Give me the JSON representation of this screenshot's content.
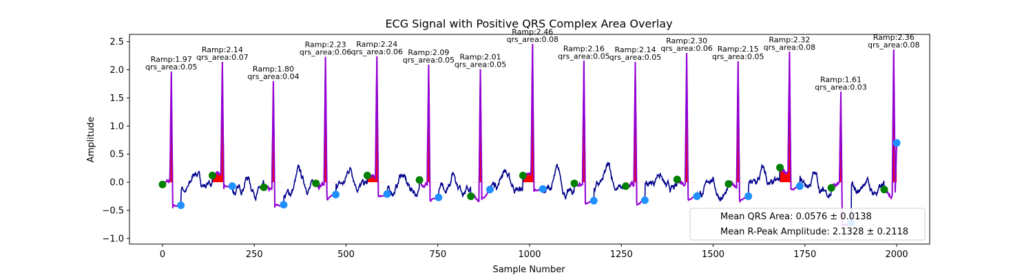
{
  "chart_data": {
    "type": "line",
    "title": "ECG Signal with Positive QRS Complex Area Overlay",
    "xlabel": "Sample Number",
    "ylabel": "Amplitude",
    "xlim": [
      -90,
      2090
    ],
    "ylim": [
      -1.1,
      2.63
    ],
    "x_ticks": [
      0,
      250,
      500,
      750,
      1000,
      1250,
      1500,
      1750,
      2000
    ],
    "y_ticks": [
      -1.0,
      -0.5,
      0.0,
      0.5,
      1.0,
      1.5,
      2.0,
      2.5
    ],
    "y_tick_labels": [
      "−1.0",
      "−0.5",
      "0.0",
      "0.5",
      "1.0",
      "1.5",
      "2.0",
      "2.5"
    ],
    "colors": {
      "signal": "#00008b",
      "qrs_segment": "#9400d3",
      "qrs_area": "#ff0000",
      "q_point": "#008000",
      "s_point": "#1e90ff"
    },
    "beats": [
      {
        "r_x": 24,
        "r_amp": 1.97,
        "q_x": 0,
        "q_y": -0.04,
        "s_x": 50,
        "s_y": -0.41,
        "area_label": "Ramp:1.97",
        "qrs_label": "qrs_area:0.05"
      },
      {
        "r_x": 163,
        "r_amp": 2.14,
        "q_x": 136,
        "q_y": 0.12,
        "s_x": 190,
        "s_y": -0.07,
        "area_label": "Ramp:2.14",
        "qrs_label": "qrs_area:0.07"
      },
      {
        "r_x": 302,
        "r_amp": 1.8,
        "q_x": 276,
        "q_y": -0.09,
        "s_x": 330,
        "s_y": -0.4,
        "area_label": "Ramp:1.80",
        "qrs_label": "qrs_area:0.04"
      },
      {
        "r_x": 444,
        "r_amp": 2.23,
        "q_x": 418,
        "q_y": -0.02,
        "s_x": 472,
        "s_y": -0.22,
        "area_label": "Ramp:2.23",
        "qrs_label": "qrs_area:0.06"
      },
      {
        "r_x": 584,
        "r_amp": 2.24,
        "q_x": 558,
        "q_y": 0.12,
        "s_x": 612,
        "s_y": -0.21,
        "area_label": "Ramp:2.24",
        "qrs_label": "qrs_area:0.06"
      },
      {
        "r_x": 725,
        "r_amp": 2.09,
        "q_x": 700,
        "q_y": 0.04,
        "s_x": 752,
        "s_y": -0.27,
        "area_label": "Ramp:2.09",
        "qrs_label": "qrs_area:0.05"
      },
      {
        "r_x": 866,
        "r_amp": 2.01,
        "q_x": 840,
        "q_y": -0.25,
        "s_x": 892,
        "s_y": -0.13,
        "area_label": "Ramp:2.01",
        "qrs_label": "qrs_area:0.05"
      },
      {
        "r_x": 1008,
        "r_amp": 2.46,
        "q_x": 982,
        "q_y": 0.12,
        "s_x": 1036,
        "s_y": -0.12,
        "area_label": "Ramp:2.46",
        "qrs_label": "qrs_area:0.08"
      },
      {
        "r_x": 1148,
        "r_amp": 2.16,
        "q_x": 1122,
        "q_y": -0.02,
        "s_x": 1175,
        "s_y": -0.33,
        "area_label": "Ramp:2.16",
        "qrs_label": "qrs_area:0.05"
      },
      {
        "r_x": 1288,
        "r_amp": 2.14,
        "q_x": 1262,
        "q_y": -0.07,
        "s_x": 1314,
        "s_y": -0.32,
        "area_label": "Ramp:2.14",
        "qrs_label": "qrs_area:0.05"
      },
      {
        "r_x": 1428,
        "r_amp": 2.3,
        "q_x": 1402,
        "q_y": 0.05,
        "s_x": 1456,
        "s_y": -0.25,
        "area_label": "Ramp:2.30",
        "qrs_label": "qrs_area:0.06"
      },
      {
        "r_x": 1568,
        "r_amp": 2.15,
        "q_x": 1542,
        "q_y": -0.03,
        "s_x": 1596,
        "s_y": -0.25,
        "area_label": "Ramp:2.15",
        "qrs_label": "qrs_area:0.05"
      },
      {
        "r_x": 1708,
        "r_amp": 2.32,
        "q_x": 1682,
        "q_y": 0.26,
        "s_x": 1736,
        "s_y": -0.07,
        "area_label": "Ramp:2.32",
        "qrs_label": "qrs_area:0.08"
      },
      {
        "r_x": 1848,
        "r_amp": 1.61,
        "q_x": 1822,
        "q_y": -0.1,
        "s_x": 1876,
        "s_y": -0.72,
        "area_label": "Ramp:1.61",
        "qrs_label": "qrs_area:0.03"
      },
      {
        "r_x": 1992,
        "r_amp": 2.36,
        "q_x": 1966,
        "q_y": -0.13,
        "s_x": 2000,
        "s_y": 0.7,
        "area_label": "Ramp:2.36",
        "qrs_label": "qrs_area:0.08"
      }
    ],
    "legend": {
      "placement": "lower-right",
      "entries": [
        "Mean QRS Area: 0.0576 ± 0.0138",
        "Mean R-Peak Amplitude: 2.1328 ± 0.2118"
      ]
    },
    "grid": false
  }
}
